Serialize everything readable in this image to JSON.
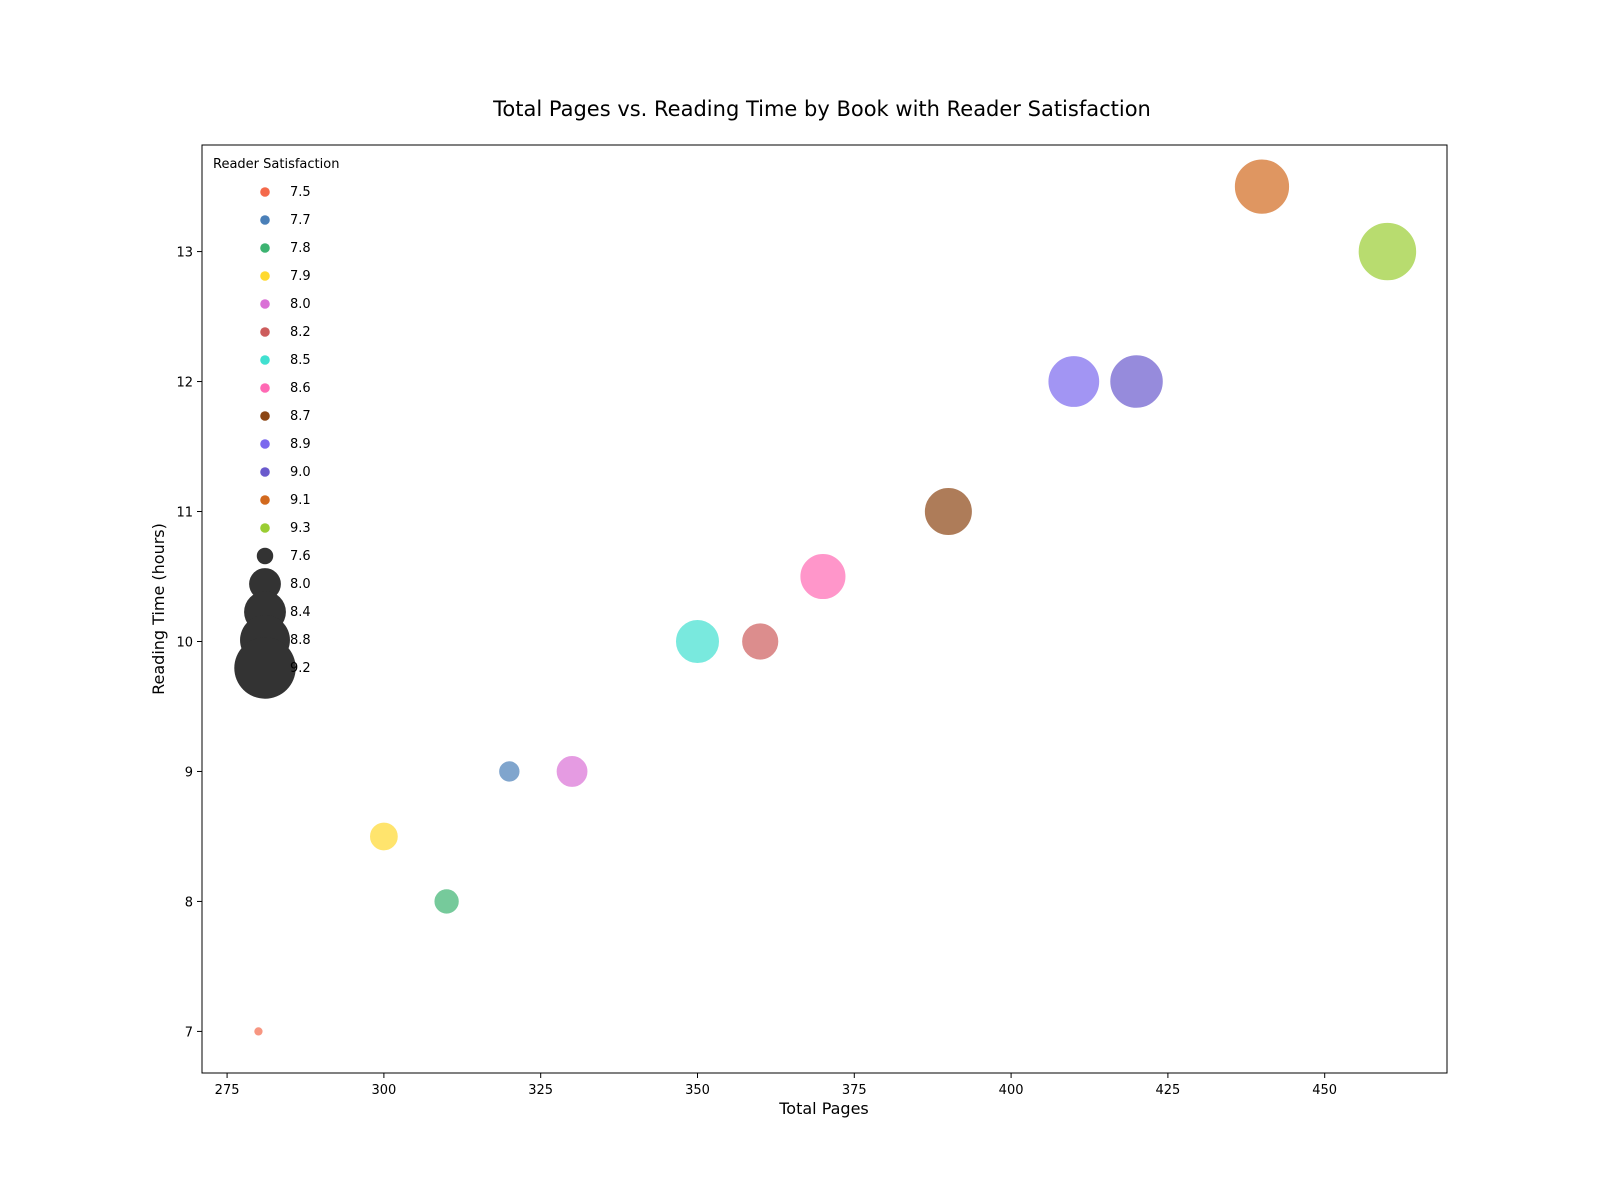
{
  "chart_data": {
    "type": "scatter",
    "title": "Total Pages vs. Reading Time by Book with Reader Satisfaction",
    "xlabel": "Total Pages",
    "ylabel": "Reading Time (hours)",
    "xlim": [
      271,
      469.5
    ],
    "ylim": [
      6.68,
      13.82
    ],
    "xticks": [
      275,
      300,
      325,
      350,
      375,
      400,
      425,
      450
    ],
    "yticks": [
      7,
      8,
      9,
      10,
      11,
      12,
      13
    ],
    "grid": false,
    "legend_placement": "upper-left",
    "legend_title": "Reader Satisfaction",
    "points": [
      {
        "x": 280,
        "y": 7.0,
        "satisfaction": 7.5,
        "color": "#f4694b"
      },
      {
        "x": 300,
        "y": 8.5,
        "satisfaction": 7.9,
        "color": "#ffd92f"
      },
      {
        "x": 310,
        "y": 8.0,
        "satisfaction": 7.8,
        "color": "#3cb371"
      },
      {
        "x": 320,
        "y": 9.0,
        "satisfaction": 7.7,
        "color": "#4a7fb8"
      },
      {
        "x": 330,
        "y": 9.0,
        "satisfaction": 8.0,
        "color": "#da70d6"
      },
      {
        "x": 350,
        "y": 10.0,
        "satisfaction": 8.5,
        "color": "#40e0d0"
      },
      {
        "x": 360,
        "y": 10.0,
        "satisfaction": 8.2,
        "color": "#cd5c5c"
      },
      {
        "x": 370,
        "y": 10.5,
        "satisfaction": 8.6,
        "color": "#ff69b4"
      },
      {
        "x": 390,
        "y": 11.0,
        "satisfaction": 8.7,
        "color": "#8b4513"
      },
      {
        "x": 410,
        "y": 12.0,
        "satisfaction": 8.9,
        "color": "#7b68ee"
      },
      {
        "x": 420,
        "y": 12.0,
        "satisfaction": 9.0,
        "color": "#6a5acd"
      },
      {
        "x": 440,
        "y": 13.5,
        "satisfaction": 9.1,
        "color": "#d2691e"
      },
      {
        "x": 460,
        "y": 13.0,
        "satisfaction": 9.3,
        "color": "#9acd32"
      }
    ],
    "legend_hue": [
      {
        "label": "7.5",
        "color": "#f4694b"
      },
      {
        "label": "7.7",
        "color": "#4a7fb8"
      },
      {
        "label": "7.8",
        "color": "#3cb371"
      },
      {
        "label": "7.9",
        "color": "#ffd92f"
      },
      {
        "label": "8.0",
        "color": "#da70d6"
      },
      {
        "label": "8.2",
        "color": "#cd5c5c"
      },
      {
        "label": "8.5",
        "color": "#40e0d0"
      },
      {
        "label": "8.6",
        "color": "#ff69b4"
      },
      {
        "label": "8.7",
        "color": "#8b4513"
      },
      {
        "label": "8.9",
        "color": "#7b68ee"
      },
      {
        "label": "9.0",
        "color": "#6a5acd"
      },
      {
        "label": "9.1",
        "color": "#d2691e"
      },
      {
        "label": "9.3",
        "color": "#9acd32"
      }
    ],
    "legend_size": [
      {
        "label": "7.6",
        "value": 7.6
      },
      {
        "label": "8.0",
        "value": 8.0
      },
      {
        "label": "8.4",
        "value": 8.4
      },
      {
        "label": "8.8",
        "value": 8.8
      },
      {
        "label": "9.2",
        "value": 9.2
      }
    ],
    "size_legend_color": "#333333",
    "marker_alpha": 0.7
  }
}
